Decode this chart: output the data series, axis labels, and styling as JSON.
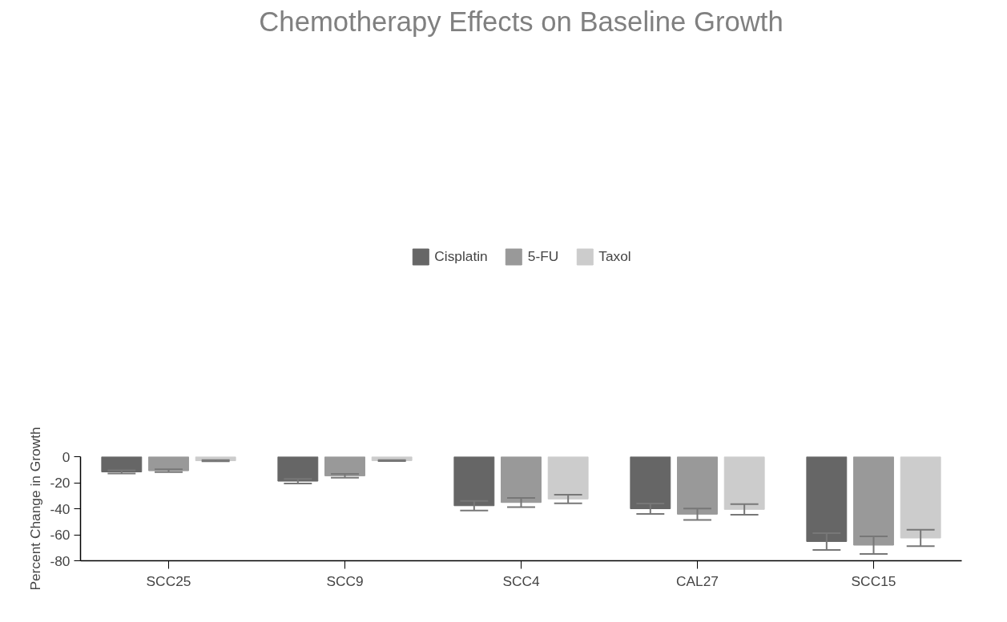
{
  "chart_data": {
    "type": "bar",
    "title": "Chemotherapy Effects on Baseline Growth",
    "ylabel": "Percent Change in Growth",
    "categories": [
      "SCC25",
      "SCC9",
      "SCC4",
      "CAL27",
      "SCC15"
    ],
    "series": [
      {
        "name": "Cisplatin",
        "color": "#666666",
        "values": [
          -11.7,
          -18.8,
          -37.7,
          -40,
          -65.2
        ],
        "errors": [
          1.2,
          1.8,
          3.7,
          4,
          6.5
        ]
      },
      {
        "name": "5-FU",
        "color": "#999999",
        "values": [
          -10.8,
          -14.7,
          -35.2,
          -44.2,
          -68
        ],
        "errors": [
          1.1,
          1.5,
          3.5,
          4.4,
          6.8
        ]
      },
      {
        "name": "Taxol",
        "color": "#cccccc",
        "values": [
          -3.1,
          -3,
          -32.5,
          -40.5,
          -62.5
        ],
        "errors": [
          0.5,
          0.4,
          3.3,
          4.1,
          6.3
        ]
      }
    ],
    "ylim": [
      -80,
      0
    ],
    "yticks": [
      0,
      -20,
      -40,
      -60,
      -80
    ],
    "grid": false,
    "legend": "top"
  }
}
